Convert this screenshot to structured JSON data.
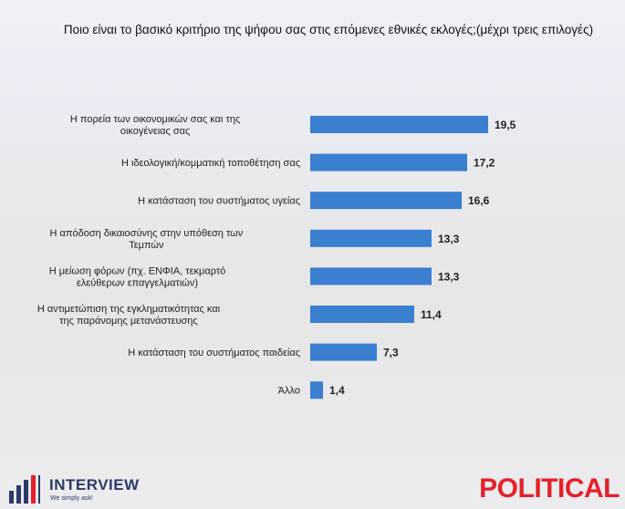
{
  "chart_data": {
    "type": "bar",
    "orientation": "horizontal",
    "title": "Ποιο είναι το βασικό κριτήριο της ψήφου σας στις επόμενες εθνικές εκλογές;(μέχρι τρεις επιλογές)",
    "categories": [
      [
        "Η πορεία των οικονομικών σας και της",
        "οικογένειας σας"
      ],
      [
        "Η ιδεολογική/κομματική τοποθέτηση σας"
      ],
      [
        "Η κατάσταση του συστήματος υγείας"
      ],
      [
        "Η απόδοση δικαιοσύνης στην υπόθεση των",
        "Τεμπών"
      ],
      [
        "Η μείωση φόρων (πχ. ΕΝΦΙΑ, τεκμαρτό",
        "ελεύθερων επαγγελματιών)"
      ],
      [
        "Η αντιμετώπιση της εγκληματικότητας και",
        "της παράνομης μετανάστευσης"
      ],
      [
        "Η κατάσταση του συστήματος παιδείας"
      ],
      [
        "Άλλο"
      ]
    ],
    "values": [
      19.5,
      17.2,
      16.6,
      13.3,
      13.3,
      11.4,
      7.3,
      1.4
    ],
    "value_labels": [
      "19,5",
      "17,2",
      "16,6",
      "13,3",
      "13,3",
      "11,4",
      "7,3",
      "1,4"
    ],
    "xlim": [
      0,
      20
    ],
    "bar_color": "#3b7fd0",
    "grid": false,
    "legend": "none"
  },
  "footer": {
    "brand_left": "INTERVIEW",
    "brand_left_tagline": "We simply ask!",
    "brand_right": "POLITICAL",
    "brand_right_color": "#e5202a"
  }
}
